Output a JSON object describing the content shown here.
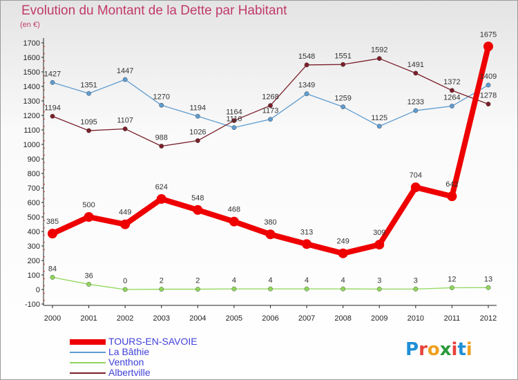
{
  "title": "Evolution du Montant de la Dette par Habitant",
  "unit": "(en €)",
  "logo": {
    "text": "Proxiti",
    "colors": [
      "#1e8fd6",
      "#e8423a",
      "#f0a020",
      "#2a9a3a",
      "#e8423a",
      "#1e8fd6",
      "#f0a020"
    ]
  },
  "chart_data": {
    "type": "line",
    "x": [
      "2000",
      "2001",
      "2002",
      "2003",
      "2004",
      "2005",
      "2006",
      "2007",
      "2008",
      "2009",
      "2010",
      "2011",
      "2012"
    ],
    "ylim": [
      -100,
      1700
    ],
    "yticks": [
      -100,
      0,
      100,
      200,
      300,
      400,
      500,
      600,
      700,
      800,
      900,
      1000,
      1100,
      1200,
      1300,
      1400,
      1500,
      1600,
      1700
    ],
    "grid": false,
    "legend_position": "bottom-left",
    "series": [
      {
        "name": "TOURS-EN-SAVOIE",
        "color": "#ee0000",
        "width": 8,
        "marker": 7,
        "values": [
          385,
          500,
          449,
          624,
          548,
          468,
          380,
          313,
          249,
          309,
          704,
          642,
          1675
        ],
        "labels": [
          "385",
          "500",
          "449",
          "624",
          "548",
          "468",
          "380",
          "313",
          "249",
          "309",
          "704",
          "642",
          "1675"
        ]
      },
      {
        "name": "La Bâthie",
        "color": "#5f9ccf",
        "width": 1.3,
        "marker": 3.2,
        "values": [
          1427,
          1351,
          1447,
          1270,
          1194,
          1116,
          1173,
          1349,
          1259,
          1125,
          1233,
          1264,
          1409
        ],
        "labels": [
          "1427",
          "1351",
          "1447",
          "1270",
          "1194",
          "1116",
          "1173",
          "1349",
          "1259",
          "1125",
          "1233",
          "1264",
          "1409"
        ]
      },
      {
        "name": "Venthon",
        "color": "#8fd65a",
        "width": 1.3,
        "marker": 3.2,
        "values": [
          84,
          36,
          0,
          2,
          2,
          4,
          4,
          4,
          4,
          3,
          3,
          12,
          13
        ],
        "labels": [
          "84",
          "36",
          "0",
          "2",
          "2",
          "4",
          "4",
          "4",
          "4",
          "3",
          "3",
          "12",
          "13"
        ]
      },
      {
        "name": "Albertville",
        "color": "#7a1f2a",
        "width": 1.3,
        "marker": 3.2,
        "values": [
          1194,
          1095,
          1107,
          988,
          1026,
          1164,
          1268,
          1548,
          1551,
          1592,
          1491,
          1372,
          1278
        ],
        "labels": [
          "1194",
          "1095",
          "1107",
          "988",
          "1026",
          "1164",
          "1268",
          "1548",
          "1551",
          "1592",
          "1491",
          "1372",
          "1278"
        ]
      }
    ]
  }
}
